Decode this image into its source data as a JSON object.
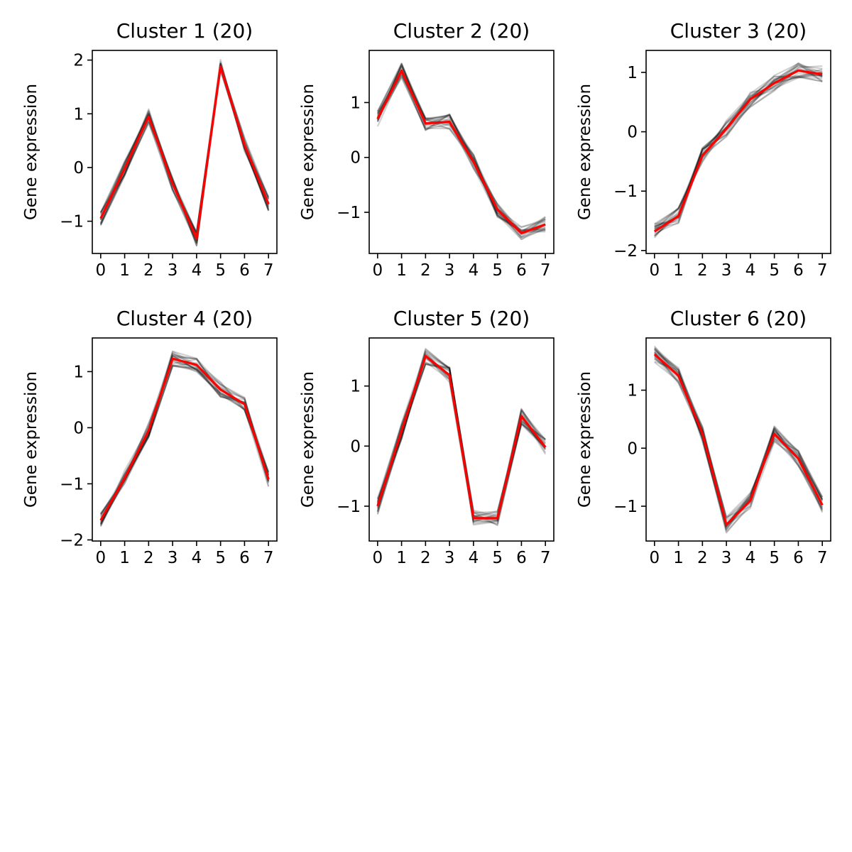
{
  "chart_data": [
    {
      "type": "line",
      "title": "Cluster 1 (20)",
      "xlabel": "",
      "ylabel": "Gene expression",
      "x": [
        0,
        1,
        2,
        3,
        4,
        5,
        6,
        7
      ],
      "xlim": [
        -0.35,
        7.35
      ],
      "ylim": [
        -1.6,
        2.18
      ],
      "yticks": [
        -1,
        0,
        1,
        2
      ],
      "series": [
        {
          "values": [
            -0.95,
            -0.02,
            0.95,
            -0.3,
            -1.32,
            1.88,
            0.42,
            -0.68
          ]
        }
      ]
    },
    {
      "type": "line",
      "title": "Cluster 2 (20)",
      "xlabel": "",
      "ylabel": "Gene expression",
      "x": [
        0,
        1,
        2,
        3,
        4,
        5,
        6,
        7
      ],
      "xlim": [
        -0.35,
        7.35
      ],
      "ylim": [
        -1.75,
        1.95
      ],
      "yticks": [
        -1,
        0,
        1
      ],
      "series": [
        {
          "values": [
            0.7,
            1.58,
            0.62,
            0.65,
            -0.08,
            -0.95,
            -1.38,
            -1.22
          ]
        }
      ]
    },
    {
      "type": "line",
      "title": "Cluster 3 (20)",
      "xlabel": "",
      "ylabel": "Gene expression",
      "x": [
        0,
        1,
        2,
        3,
        4,
        5,
        6,
        7
      ],
      "xlim": [
        -0.35,
        7.35
      ],
      "ylim": [
        -2.05,
        1.37
      ],
      "yticks": [
        -2,
        -1,
        0,
        1
      ],
      "series": [
        {
          "values": [
            -1.68,
            -1.42,
            -0.4,
            0.05,
            0.55,
            0.82,
            1.03,
            0.97
          ]
        }
      ]
    },
    {
      "type": "line",
      "title": "Cluster 4 (20)",
      "xlabel": "",
      "ylabel": "Gene expression",
      "x": [
        0,
        1,
        2,
        3,
        4,
        5,
        6,
        7
      ],
      "xlim": [
        -0.35,
        7.35
      ],
      "ylim": [
        -2.02,
        1.6
      ],
      "yticks": [
        -2,
        -1,
        0,
        1
      ],
      "series": [
        {
          "values": [
            -1.65,
            -0.9,
            -0.05,
            1.23,
            1.12,
            0.68,
            0.42,
            -0.92
          ]
        }
      ]
    },
    {
      "type": "line",
      "title": "Cluster 5 (20)",
      "xlabel": "",
      "ylabel": "Gene expression",
      "x": [
        0,
        1,
        2,
        3,
        4,
        5,
        6,
        7
      ],
      "xlim": [
        -0.35,
        7.35
      ],
      "ylim": [
        -1.58,
        1.8
      ],
      "yticks": [
        -1,
        0,
        1
      ],
      "series": [
        {
          "values": [
            -1.0,
            0.25,
            1.5,
            1.18,
            -1.2,
            -1.2,
            0.5,
            -0.02
          ]
        }
      ]
    },
    {
      "type": "line",
      "title": "Cluster 6 (20)",
      "xlabel": "",
      "ylabel": "Gene expression",
      "x": [
        0,
        1,
        2,
        3,
        4,
        5,
        6,
        7
      ],
      "xlim": [
        -0.35,
        7.35
      ],
      "ylim": [
        -1.6,
        1.9
      ],
      "yticks": [
        -1,
        0,
        1
      ],
      "series": [
        {
          "values": [
            1.62,
            1.25,
            0.25,
            -1.32,
            -0.9,
            0.25,
            -0.18,
            -0.98
          ]
        }
      ]
    }
  ],
  "colors": {
    "centroid": "#ff0000",
    "members": "#000000",
    "axes": "#000000",
    "background": "#ffffff"
  }
}
